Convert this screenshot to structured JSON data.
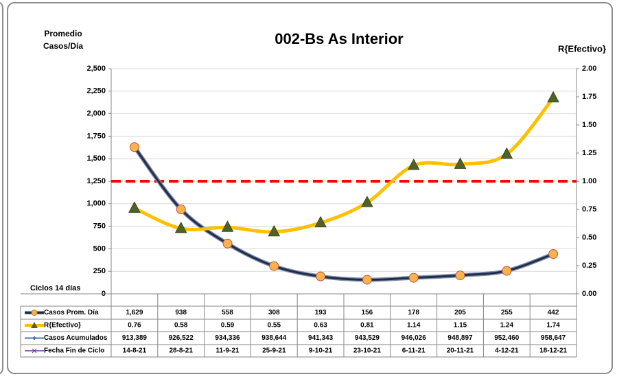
{
  "chart_data": {
    "type": "line",
    "title": "002-Bs As Interior",
    "ylabel": "Promedio Casos/Día",
    "y2label": "R{Efectivo}",
    "xlabel": "Ciclos 14 días",
    "categories_name": "Fecha Fin de Ciclo",
    "categories": [
      "14-8-21",
      "28-8-21",
      "11-9-21",
      "25-9-21",
      "9-10-21",
      "23-10-21",
      "6-11-21",
      "20-11-21",
      "4-12-21",
      "18-12-21"
    ],
    "series": [
      {
        "name": "Casos Prom. Día",
        "color": "#1f2d4d",
        "marker_color": "#f8b44a",
        "axis": "y",
        "values": [
          1629,
          938,
          558,
          308,
          193,
          156,
          178,
          205,
          255,
          442
        ],
        "value_labels": [
          "1,629",
          "938",
          "558",
          "308",
          "193",
          "156",
          "178",
          "205",
          "255",
          "442"
        ]
      },
      {
        "name": "R{Efectivo}",
        "color": "#ffc000",
        "marker_color": "#4f6228",
        "axis": "y2",
        "values": [
          0.76,
          0.58,
          0.59,
          0.55,
          0.63,
          0.81,
          1.14,
          1.15,
          1.24,
          1.74
        ]
      },
      {
        "name": "Casos Acumulados",
        "color": "#4472c4",
        "table_only": true,
        "values": [
          913389,
          926522,
          934336,
          938644,
          941343,
          943529,
          946026,
          948897,
          952460,
          958647
        ],
        "value_labels": [
          "913,389",
          "926,522",
          "934,336",
          "938,644",
          "941,343",
          "943,529",
          "946,026",
          "948,897",
          "952,460",
          "958,647"
        ]
      }
    ],
    "reference_line": {
      "value": 1,
      "axis": "y2",
      "color": "#ff0000"
    },
    "ylim": [
      0,
      2500
    ],
    "yticks": [
      0,
      250,
      500,
      750,
      {
        "value": 1000,
        "label": "1,000"
      },
      {
        "value": 1250,
        "label": "1,250"
      },
      {
        "value": 1500,
        "label": "1,500"
      },
      {
        "value": 1750,
        "label": "1,750"
      },
      {
        "value": 2000,
        "label": "2,000"
      },
      {
        "value": 2250,
        "label": "2,250"
      },
      {
        "value": 2500,
        "label": "2,500"
      }
    ],
    "y2lim": [
      0,
      2
    ],
    "y2ticks": [
      {
        "value": 0,
        "label": "0.00"
      },
      {
        "value": 0.25,
        "label": "0.25"
      },
      {
        "value": 0.5,
        "label": "0.50"
      },
      {
        "value": 0.75,
        "label": "0.75"
      },
      {
        "value": 1,
        "label": "1.00"
      },
      {
        "value": 1.25,
        "label": "1.25"
      },
      {
        "value": 1.5,
        "label": "1.50"
      },
      {
        "value": 1.75,
        "label": "1.75"
      },
      {
        "value": 2,
        "label": "2.00"
      }
    ],
    "grid": true
  }
}
